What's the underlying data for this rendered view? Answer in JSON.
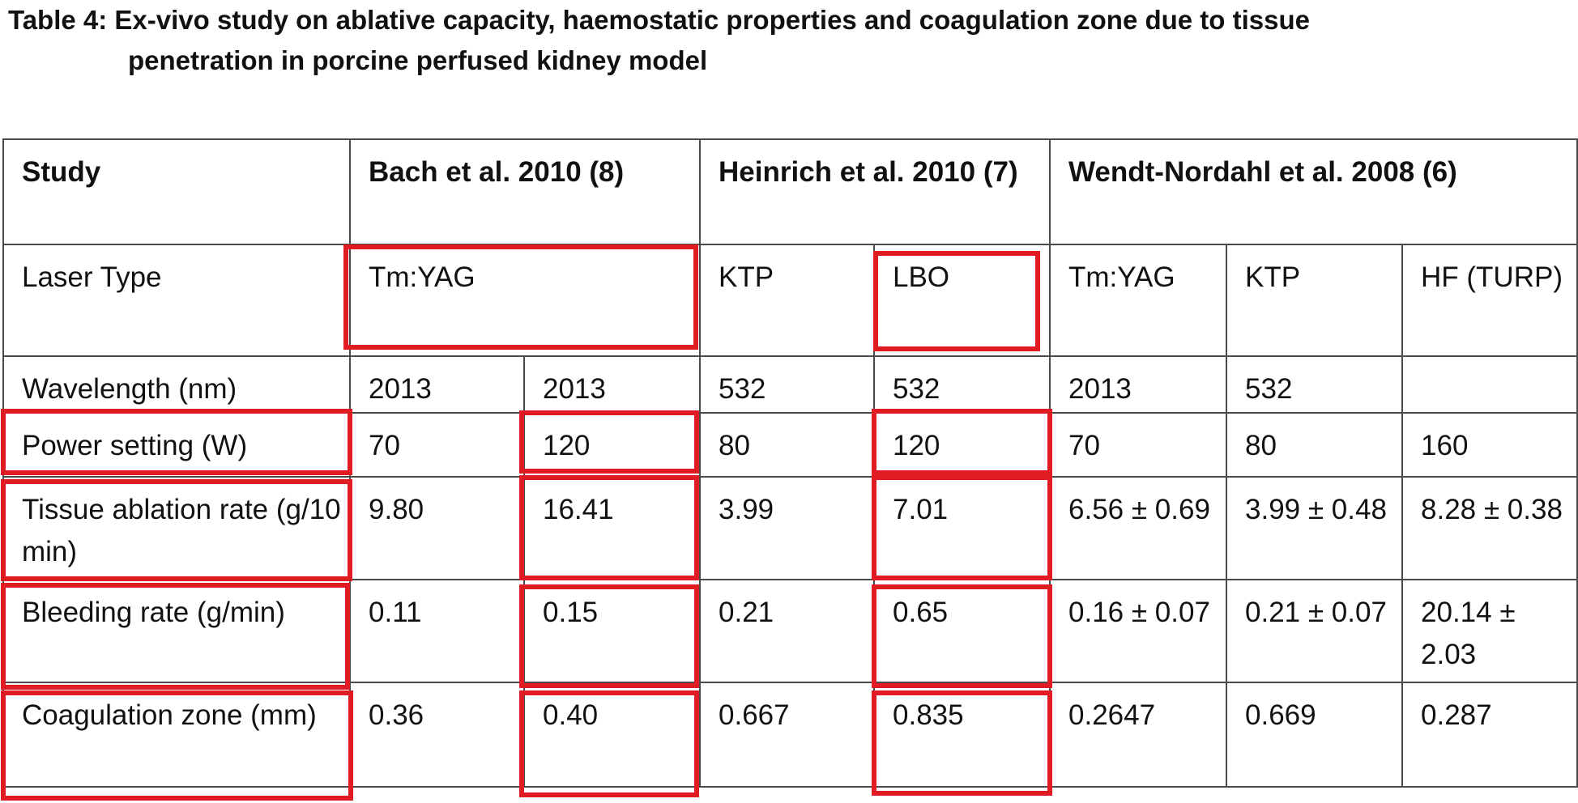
{
  "title": {
    "line1": "Table 4: Ex-vivo study on ablative capacity, haemostatic properties and coagulation zone due to tissue",
    "line2": "penetration in porcine perfused kidney model"
  },
  "table": {
    "header": {
      "study": "Study",
      "bach": "Bach et al. 2010 (8)",
      "heinrich": "Heinrich et al. 2010 (7)",
      "wendt": "Wendt-Nordahl et al. 2008 (6)"
    },
    "laser_type": {
      "label": "Laser Type",
      "bach": "Tm:YAG",
      "heinrich_1": "KTP",
      "heinrich_2": "LBO",
      "wendt_1": "Tm:YAG",
      "wendt_2": "KTP",
      "wendt_3": "HF (TURP)"
    },
    "rows": [
      {
        "label": "Wavelength (nm)",
        "cells": [
          "2013",
          "2013",
          "532",
          "532",
          "2013",
          "532",
          ""
        ]
      },
      {
        "label": "Power setting (W)",
        "cells": [
          "70",
          "120",
          "80",
          "120",
          "70",
          "80",
          "160"
        ]
      },
      {
        "label": "Tissue ablation rate (g/10 min)",
        "cells": [
          "9.80",
          "16.41",
          "3.99",
          "7.01",
          "6.56 ± 0.69",
          "3.99 ± 0.48",
          "8.28 ± 0.38"
        ]
      },
      {
        "label": "Bleeding rate (g/min)",
        "cells": [
          "0.11",
          "0.15",
          "0.21",
          "0.65",
          "0.16 ± 0.07",
          "0.21 ± 0.07",
          "20.14 ± 2.03"
        ]
      },
      {
        "label": "Coagulation zone (mm)",
        "cells": [
          "0.36",
          "0.40",
          "0.667",
          "0.835",
          "0.2647",
          "0.669",
          "0.287"
        ]
      }
    ]
  }
}
